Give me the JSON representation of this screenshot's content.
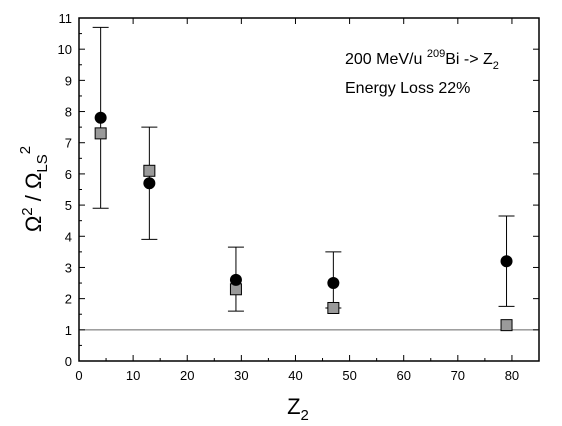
{
  "chart_data": {
    "type": "scatter",
    "title": "",
    "xlabel": {
      "base": "Z",
      "sub": "2"
    },
    "ylabel": {
      "num": "Ω",
      "num_sup": "2",
      "sep": " / ",
      "den": "Ω",
      "den_sub": "LS",
      "den_sup": "2"
    },
    "xlim": [
      0,
      85
    ],
    "ylim": [
      0,
      11
    ],
    "xticks": [
      "0",
      "10",
      "20",
      "30",
      "40",
      "50",
      "60",
      "70",
      "80"
    ],
    "yticks": [
      "0",
      "1",
      "2",
      "3",
      "4",
      "5",
      "6",
      "7",
      "8",
      "9",
      "10",
      "11"
    ],
    "reference_line": {
      "y": 1
    },
    "grid": false,
    "series": [
      {
        "marker": "circle",
        "color": "#000000",
        "points": [
          {
            "x": 4,
            "y": 7.8,
            "err_low": 4.9,
            "err_high": 10.7
          },
          {
            "x": 13,
            "y": 5.7,
            "err_low": 3.9,
            "err_high": 7.5
          },
          {
            "x": 29,
            "y": 2.6,
            "err_low": 1.6,
            "err_high": 3.65
          },
          {
            "x": 47,
            "y": 2.5,
            "err_low": 1.7,
            "err_high": 3.5
          },
          {
            "x": 79,
            "y": 3.2,
            "err_low": 1.75,
            "err_high": 4.65
          }
        ]
      },
      {
        "marker": "square",
        "color": "#9a9a9a",
        "points": [
          {
            "x": 4,
            "y": 7.3
          },
          {
            "x": 13,
            "y": 6.1
          },
          {
            "x": 29,
            "y": 2.3
          },
          {
            "x": 47,
            "y": 1.7
          },
          {
            "x": 79,
            "y": 1.15
          }
        ]
      }
    ],
    "annotation": {
      "line1_prefix": "200 MeV/u  ",
      "line1_sup": "209",
      "line1_mid": "Bi -> Z",
      "line1_sub": "2",
      "line2": "Energy Loss 22%"
    }
  }
}
